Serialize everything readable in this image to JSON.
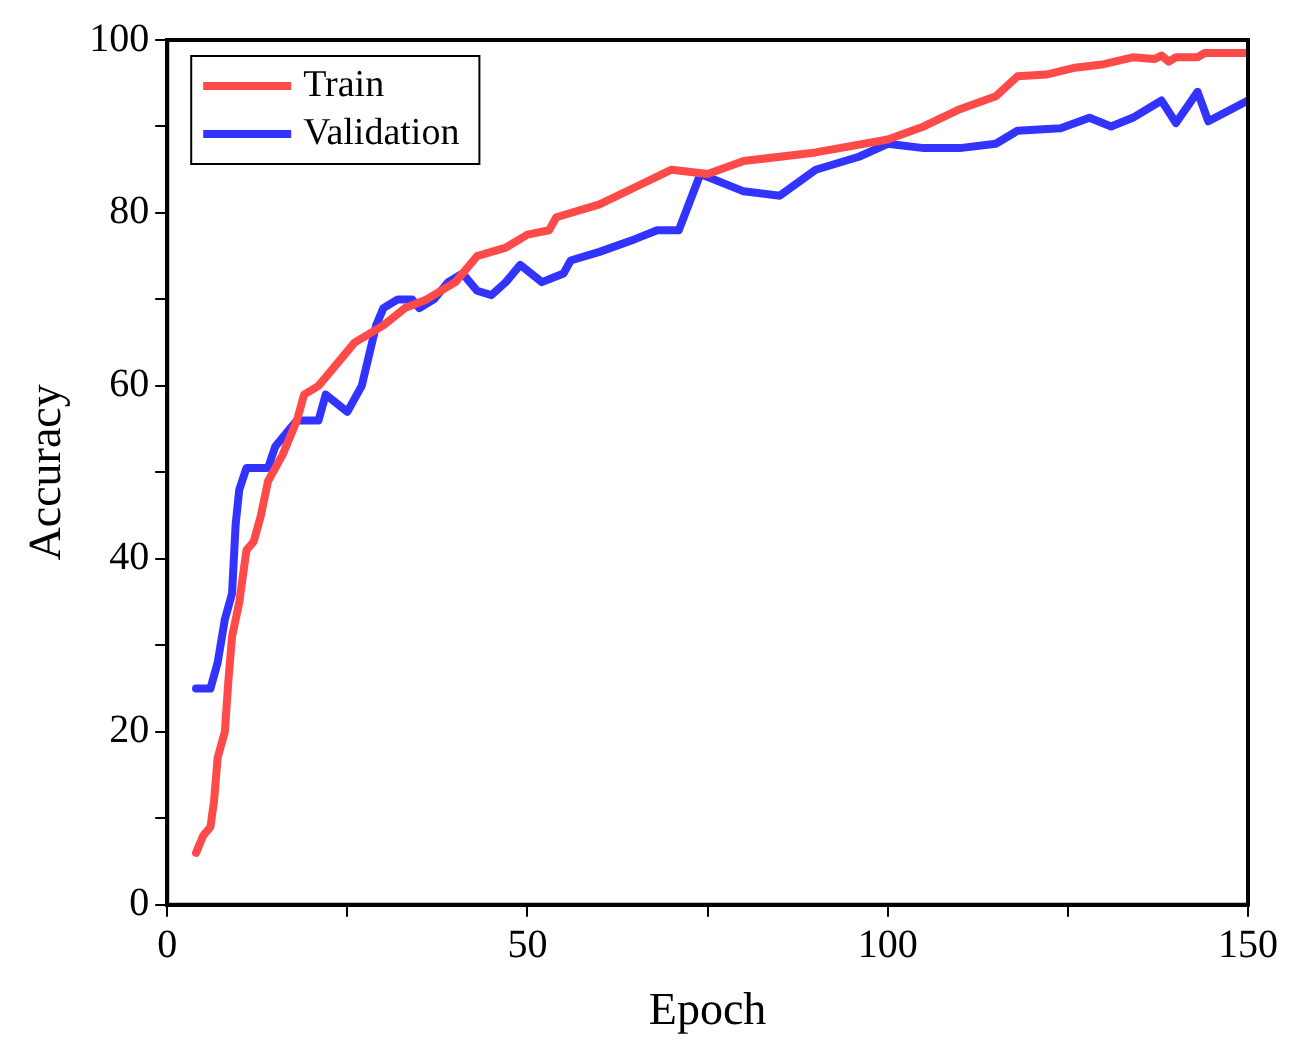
{
  "chart_data": {
    "type": "line",
    "xlabel": "Epoch",
    "ylabel": "Accuracy",
    "xlim": [
      0,
      150
    ],
    "xticks": [
      0,
      {
        "value": 25,
        "label": null
      },
      50,
      {
        "value": 75,
        "label": null
      },
      100,
      {
        "value": 125,
        "label": null
      },
      150
    ],
    "ylim": [
      0,
      100
    ],
    "yticks": [
      0,
      {
        "value": 10,
        "label": null
      },
      20,
      {
        "value": 30,
        "label": null
      },
      40,
      {
        "value": 50,
        "label": null
      },
      60,
      {
        "value": 70,
        "label": null
      },
      80,
      {
        "value": 90,
        "label": null
      },
      100
    ],
    "grid": false,
    "legend": "top left",
    "marker": "none",
    "line_style": "solid",
    "series": [
      {
        "name": "Train",
        "color": "#ff4a4a",
        "x": [
          4,
          5,
          6,
          6.5,
          7,
          8,
          8.5,
          9,
          10,
          11,
          12,
          13,
          14,
          16,
          18,
          19,
          21,
          23,
          26,
          30,
          33,
          36,
          40,
          43,
          47,
          50,
          53,
          54,
          60,
          65,
          70,
          75,
          80,
          90,
          100,
          105,
          110,
          115,
          118,
          122,
          126,
          130,
          134,
          137,
          138,
          139,
          140,
          143,
          144,
          150
        ],
        "values": [
          6,
          8,
          9,
          12,
          17,
          20,
          26,
          31,
          35,
          41,
          42,
          45,
          49,
          52,
          56,
          59,
          60,
          62,
          65,
          67,
          69,
          70,
          72,
          75,
          76,
          77.5,
          78,
          79.5,
          81,
          83,
          85,
          84.5,
          86,
          87,
          88.5,
          90,
          92,
          93.5,
          95.8,
          96,
          96.8,
          97.2,
          98,
          97.8,
          98.2,
          97.5,
          98,
          98,
          98.5,
          98.5
        ]
      },
      {
        "name": "Validation",
        "color": "#3333ff",
        "x": [
          4,
          6,
          7,
          8,
          9,
          9.5,
          10,
          11,
          14,
          15,
          17,
          18,
          21,
          22,
          25,
          27,
          29,
          30,
          32,
          34,
          35,
          37,
          39,
          41,
          43,
          45,
          47,
          49,
          52,
          55,
          56,
          60,
          65,
          68,
          71,
          74,
          80,
          85,
          90,
          96,
          100,
          105,
          110,
          115,
          118,
          124,
          128,
          131,
          134,
          138,
          140,
          143,
          144.5,
          150
        ],
        "values": [
          25,
          25,
          28,
          33,
          36,
          44,
          48,
          50.5,
          50.5,
          53,
          55,
          56,
          56,
          59,
          57,
          60,
          67,
          69,
          70,
          70,
          69,
          70,
          72,
          73,
          71,
          70.5,
          72,
          74,
          72,
          73,
          74.5,
          75.5,
          77,
          78,
          78,
          84.5,
          82.5,
          82,
          85,
          86.5,
          88,
          87.5,
          87.5,
          88,
          89.5,
          89.8,
          91,
          90,
          91,
          93,
          90.4,
          94,
          90.6,
          93
        ]
      }
    ]
  }
}
